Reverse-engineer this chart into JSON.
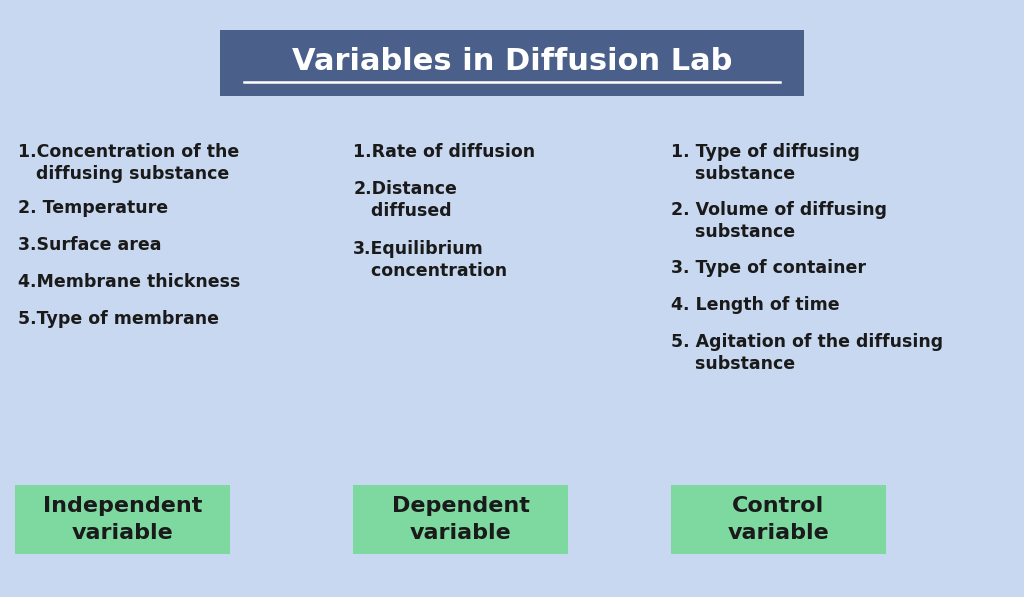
{
  "title": "Variables in Diffusion Lab",
  "title_bg_color": "#4a5f8a",
  "title_text_color": "#ffffff",
  "bg_color": "#c8d8f0",
  "label_bg_color": "#7dd9a0",
  "label_text_color": "#1a1a1a",
  "body_text_color": "#1a1a1a",
  "col1_label": "Independent\nvariable",
  "col2_label": "Dependent\nvariable",
  "col3_label": "Control\nvariable",
  "col1_items": [
    "1.Concentration of the\n   diffusing substance",
    "2. Temperature",
    "3.Surface area",
    "4.Membrane thickness",
    "5.Type of membrane"
  ],
  "col2_items": [
    "1.Rate of diffusion",
    "2.Distance\n   diffused",
    "3.Equilibrium\n   concentration"
  ],
  "col3_items": [
    "1. Type of diffusing\n    substance",
    "2. Volume of diffusing\n    substance",
    "3. Type of container",
    "4. Length of time",
    "5. Agitation of the diffusing\n    substance"
  ]
}
